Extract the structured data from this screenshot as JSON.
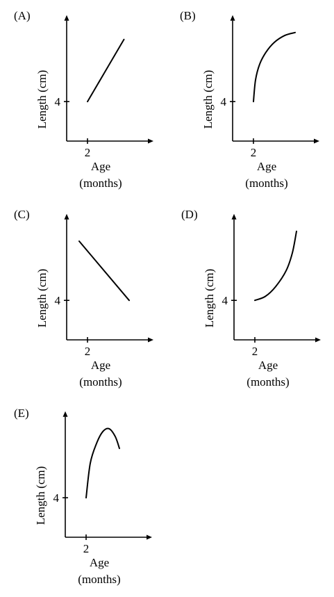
{
  "chart_data": [
    {
      "type": "line",
      "panel_label": "(A)",
      "ylabel": "Length (cm)",
      "xlabel_line1": "Age",
      "xlabel_line2": "(months)",
      "x_tick": "2",
      "y_tick": "4",
      "shape": "linear-increasing",
      "x": [
        2,
        3.5,
        5.5
      ],
      "y": [
        4,
        6.7,
        10.3
      ]
    },
    {
      "type": "line",
      "panel_label": "(B)",
      "ylabel": "Length (cm)",
      "xlabel_line1": "Age",
      "xlabel_line2": "(months)",
      "x_tick": "2",
      "y_tick": "4",
      "shape": "concave-increasing",
      "x": [
        2,
        2.2,
        2.6,
        3.2,
        4.0,
        5.0,
        6.0
      ],
      "y": [
        4,
        6.2,
        7.8,
        9.0,
        10.0,
        10.7,
        11.0
      ]
    },
    {
      "type": "line",
      "panel_label": "(C)",
      "ylabel": "Length (cm)",
      "xlabel_line1": "Age",
      "xlabel_line2": "(months)",
      "x_tick": "2",
      "y_tick": "4",
      "shape": "linear-decreasing",
      "x": [
        1.2,
        6.0
      ],
      "y": [
        10.0,
        4.0
      ]
    },
    {
      "type": "line",
      "panel_label": "(D)",
      "ylabel": "Length (cm)",
      "xlabel_line1": "Age",
      "xlabel_line2": "(months)",
      "x_tick": "2",
      "y_tick": "4",
      "shape": "convex-increasing",
      "x": [
        2,
        3.0,
        4.0,
        5.0,
        5.6,
        6.0
      ],
      "y": [
        4,
        4.4,
        5.4,
        7.0,
        8.8,
        11.0
      ]
    },
    {
      "type": "line",
      "panel_label": "(E)",
      "ylabel": "Length (cm)",
      "xlabel_line1": "Age",
      "xlabel_line2": "(months)",
      "x_tick": "2",
      "y_tick": "4",
      "shape": "rise-then-fall",
      "x": [
        2,
        2.4,
        3.0,
        3.6,
        4.2,
        4.8,
        5.2
      ],
      "y": [
        4,
        7.5,
        9.5,
        10.7,
        11.0,
        10.2,
        9.0
      ]
    }
  ]
}
